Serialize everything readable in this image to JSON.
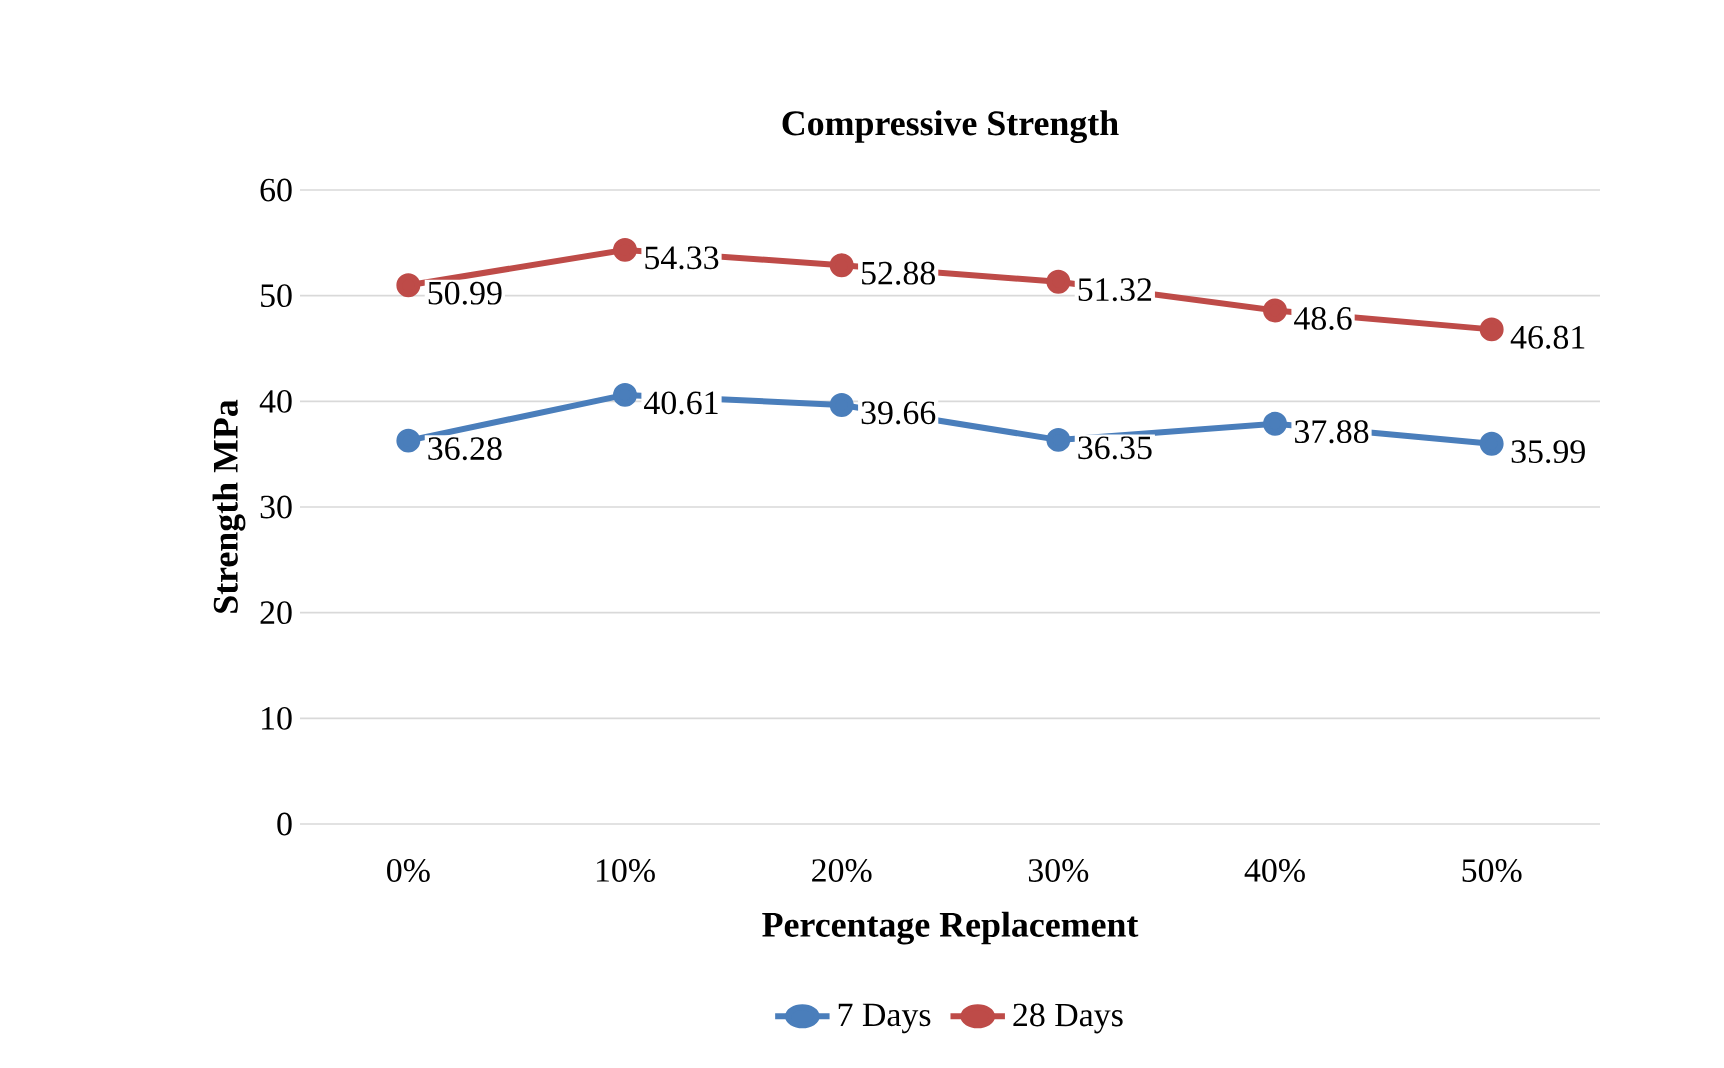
{
  "chart_data": {
    "type": "line",
    "title": "Compressive Strength",
    "xlabel": "Percentage Replacement",
    "ylabel": "Strength MPa",
    "categories": [
      "0%",
      "10%",
      "20%",
      "30%",
      "40%",
      "50%"
    ],
    "series": [
      {
        "name": "7 Days",
        "color": "#4a7ebb",
        "values": [
          36.28,
          40.61,
          39.66,
          36.35,
          37.88,
          35.99
        ]
      },
      {
        "name": "28 Days",
        "color": "#be4b48",
        "values": [
          50.99,
          54.33,
          52.88,
          51.32,
          48.6,
          46.81
        ]
      }
    ],
    "ylim": [
      0,
      60
    ],
    "yticks": [
      0,
      10,
      20,
      30,
      40,
      50,
      60
    ],
    "grid": "y",
    "legend": "bottom",
    "marker": "circle",
    "line_style": "solid",
    "data_labels": true
  }
}
